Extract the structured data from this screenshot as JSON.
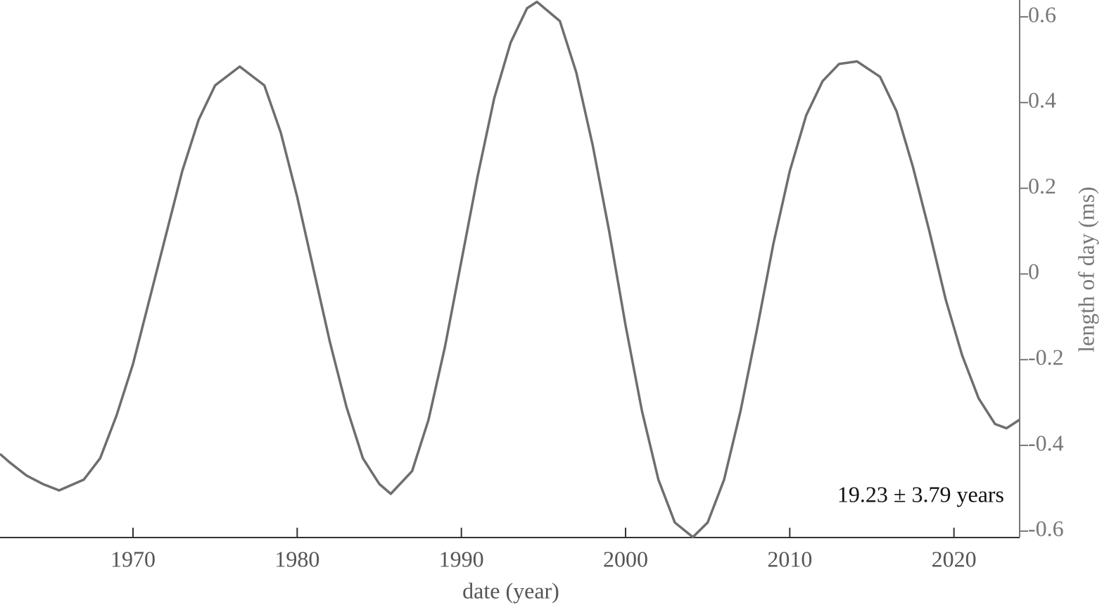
{
  "chart_data": {
    "type": "line",
    "xlabel": "date (year)",
    "ylabel": "length of day (ms)",
    "annotation": "19.23 ± 3.79 years",
    "x": [
      1961.9,
      1962.5,
      1963.5,
      1964.5,
      1965.5,
      1967,
      1968,
      1969,
      1970,
      1971,
      1972,
      1973,
      1974,
      1975,
      1976.5,
      1978,
      1979,
      1980,
      1981,
      1982,
      1983,
      1984,
      1985,
      1985.7,
      1987,
      1988,
      1989,
      1990,
      1991,
      1992,
      1993,
      1994,
      1994.6,
      1996,
      1997,
      1998,
      1999,
      2000,
      2001,
      2002,
      2003,
      2004.1,
      2005,
      2006,
      2007,
      2008,
      2009,
      2010,
      2011,
      2012,
      2013,
      2014.1,
      2015.5,
      2016.5,
      2017.5,
      2018.5,
      2019.5,
      2020.5,
      2021.5,
      2022.5,
      2023.2,
      2024
    ],
    "series": [
      {
        "color": "#6e6e6e",
        "values": [
          -0.42,
          -0.44,
          -0.47,
          -0.49,
          -0.505,
          -0.48,
          -0.43,
          -0.33,
          -0.21,
          -0.06,
          0.09,
          0.24,
          0.36,
          0.44,
          0.484,
          0.44,
          0.33,
          0.18,
          0.01,
          -0.16,
          -0.31,
          -0.43,
          -0.49,
          -0.513,
          -0.46,
          -0.34,
          -0.17,
          0.03,
          0.23,
          0.41,
          0.54,
          0.62,
          0.635,
          0.59,
          0.47,
          0.3,
          0.1,
          -0.12,
          -0.32,
          -0.48,
          -0.58,
          -0.614,
          -0.58,
          -0.48,
          -0.32,
          -0.13,
          0.07,
          0.24,
          0.37,
          0.45,
          0.49,
          0.496,
          0.46,
          0.38,
          0.25,
          0.1,
          -0.06,
          -0.19,
          -0.29,
          -0.35,
          -0.36,
          -0.34
        ]
      }
    ],
    "xlim": [
      1961.9,
      2024
    ],
    "xticks": [
      1970,
      1980,
      1990,
      2000,
      2010,
      2020
    ],
    "ylim": [
      -0.615,
      0.636
    ],
    "yticks": [
      -0.6,
      -0.4,
      -0.2,
      0,
      0.2,
      0.4,
      0.6
    ],
    "yaxis_side": "right"
  }
}
